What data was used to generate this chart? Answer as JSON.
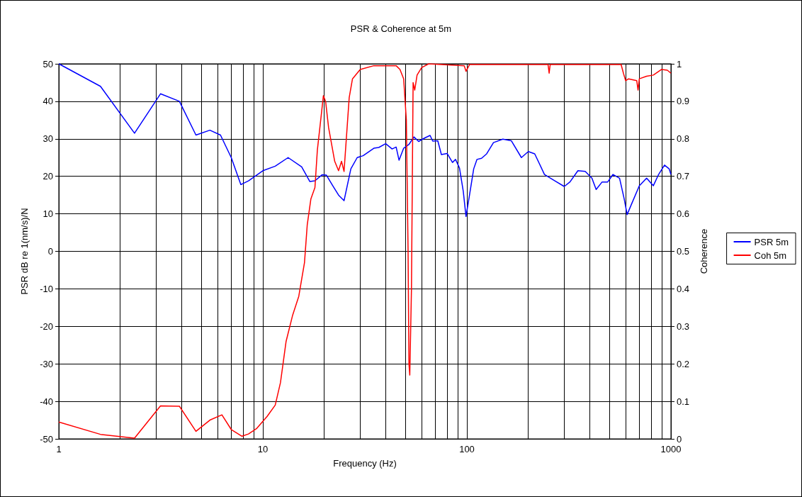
{
  "chart_data": {
    "type": "line",
    "title": "PSR & Coherence at 5m",
    "xlabel": "Frequency (Hz)",
    "ylabel": "PSR dB re 1(nm/s)/N",
    "y2label": "Coherence",
    "log": "x",
    "grid": true,
    "legend": "right",
    "marker": "none",
    "line_style": "solid",
    "xlim": [
      1,
      1000
    ],
    "xticks": [
      1,
      {
        "value": 2,
        "label": null
      },
      {
        "value": 3,
        "label": null
      },
      {
        "value": 4,
        "label": null
      },
      {
        "value": 5,
        "label": null
      },
      {
        "value": 6,
        "label": null
      },
      {
        "value": 7,
        "label": null
      },
      {
        "value": 8,
        "label": null
      },
      {
        "value": 9,
        "label": null
      },
      10,
      {
        "value": 20,
        "label": null
      },
      {
        "value": 30,
        "label": null
      },
      {
        "value": 40,
        "label": null
      },
      {
        "value": 50,
        "label": null
      },
      {
        "value": 60,
        "label": null
      },
      {
        "value": 70,
        "label": null
      },
      {
        "value": 80,
        "label": null
      },
      {
        "value": 90,
        "label": null
      },
      100,
      {
        "value": 200,
        "label": null
      },
      {
        "value": 300,
        "label": null
      },
      {
        "value": 400,
        "label": null
      },
      {
        "value": 500,
        "label": null
      },
      {
        "value": 600,
        "label": null
      },
      {
        "value": 700,
        "label": null
      },
      {
        "value": 800,
        "label": null
      },
      {
        "value": 900,
        "label": null
      },
      1000
    ],
    "ylim": [
      -50,
      50
    ],
    "yticks": [
      -50,
      -40,
      -30,
      -20,
      -10,
      0,
      10,
      20,
      30,
      40,
      50
    ],
    "y2lim": [
      0,
      1
    ],
    "y2ticks": [
      0,
      0.1,
      0.2,
      0.3,
      0.4,
      0.5,
      0.6,
      0.7,
      0.8,
      0.9,
      1
    ],
    "series": [
      {
        "name": "PSR 5m",
        "color": "#0000ff",
        "x": [
          1,
          1.6,
          2.35,
          3.15,
          3.9,
          4.7,
          5.5,
          6.2,
          7,
          7.8,
          8.5,
          10,
          11.5,
          13.3,
          15.5,
          17,
          18,
          19.5,
          20.5,
          22,
          23.5,
          25,
          27,
          29,
          31,
          35,
          37,
          40,
          43,
          45,
          46.5,
          49,
          52,
          55,
          58,
          62,
          66,
          68,
          72,
          75,
          80,
          85,
          88,
          92,
          96,
          99,
          103,
          108,
          112,
          118,
          125,
          135,
          150,
          165,
          185,
          200,
          215,
          240,
          270,
          300,
          320,
          350,
          380,
          410,
          430,
          460,
          490,
          520,
          560,
          590,
          610,
          640,
          700,
          760,
          820,
          870,
          930,
          980,
          1000
        ],
        "values": [
          50,
          44,
          31.5,
          42,
          40,
          31,
          32.3,
          31,
          25,
          17.8,
          18.8,
          21.5,
          22.7,
          25,
          22.5,
          18.6,
          18.8,
          20.4,
          20.3,
          17.5,
          15,
          13.5,
          22,
          25,
          25.5,
          27.5,
          27.7,
          28.7,
          27.3,
          27.8,
          24.3,
          27.5,
          28.5,
          30.5,
          29.3,
          30.2,
          30.9,
          29.4,
          29.5,
          25.8,
          26.1,
          23.7,
          24.5,
          22.2,
          16,
          9.3,
          15,
          22,
          24.5,
          24.8,
          26,
          29,
          29.9,
          29.5,
          25,
          26.6,
          26,
          20.5,
          18.8,
          17.3,
          18.5,
          21.5,
          21.3,
          19.5,
          16.5,
          18.5,
          18.5,
          20.5,
          19.5,
          14,
          9.8,
          12.5,
          17.5,
          19.5,
          17.5,
          20.5,
          23,
          22,
          20.5
        ]
      },
      {
        "name": "Coh 5m",
        "color": "#ff0000",
        "axis": "y2",
        "x": [
          1,
          1.6,
          2.35,
          3.15,
          3.9,
          4.7,
          5.5,
          6.3,
          7,
          7.9,
          8.5,
          9.3,
          10.5,
          11.5,
          12.2,
          13,
          14,
          15,
          16,
          16.5,
          17.2,
          18,
          18.5,
          19.3,
          19.8,
          20.3,
          21,
          22.5,
          23.5,
          24.3,
          25,
          26.5,
          27.5,
          30,
          35,
          45,
          47,
          49,
          50.5,
          51.5,
          52,
          52.5,
          53.5,
          54.5,
          55.5,
          57,
          60,
          65,
          97,
          99,
          103,
          250,
          253,
          256,
          570,
          585,
          600,
          620,
          680,
          690,
          700,
          760,
          820,
          900,
          960,
          1000
        ],
        "values": [
          0.045,
          0.012,
          0.002,
          0.088,
          0.087,
          0.02,
          0.05,
          0.064,
          0.025,
          0.007,
          0.013,
          0.027,
          0.06,
          0.09,
          0.15,
          0.26,
          0.33,
          0.38,
          0.47,
          0.57,
          0.64,
          0.67,
          0.77,
          0.86,
          0.915,
          0.9,
          0.83,
          0.74,
          0.715,
          0.74,
          0.713,
          0.91,
          0.96,
          0.985,
          0.995,
          0.995,
          0.985,
          0.96,
          0.85,
          0.5,
          0.2,
          0.17,
          0.4,
          0.95,
          0.93,
          0.97,
          0.99,
          1.0,
          0.995,
          0.98,
          0.998,
          0.998,
          0.975,
          0.998,
          0.998,
          0.975,
          0.955,
          0.96,
          0.955,
          0.93,
          0.96,
          0.967,
          0.97,
          0.985,
          0.983,
          0.975
        ]
      }
    ]
  }
}
